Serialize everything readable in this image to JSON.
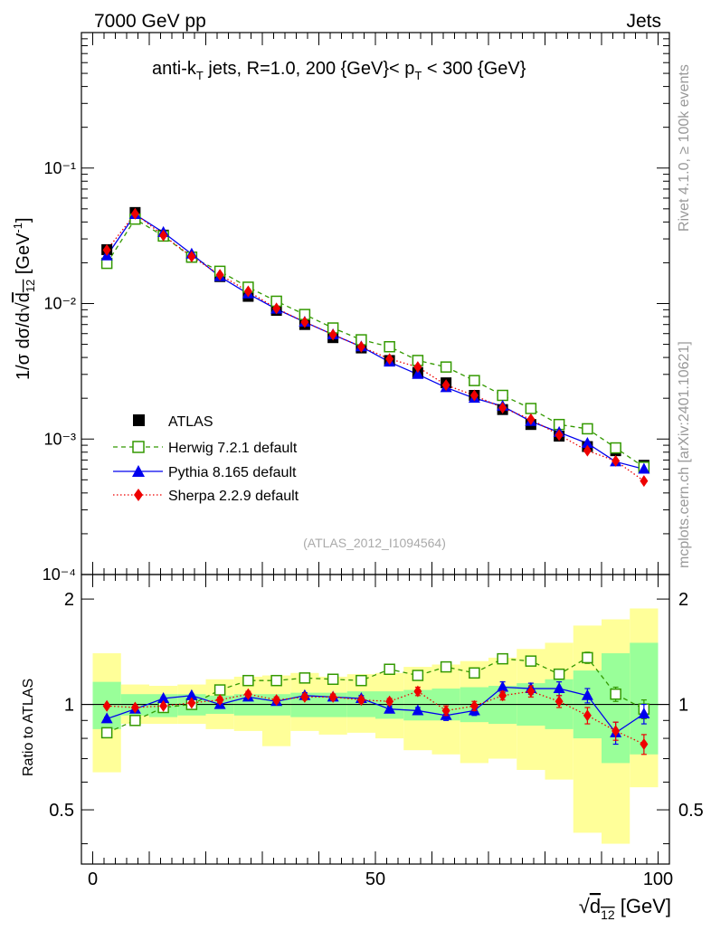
{
  "header": {
    "left": "7000 GeV pp",
    "right": "Jets"
  },
  "side_texts": {
    "rivet": "Rivet 4.1.0, ≥ 100k events",
    "mcplots": "mcplots.cern.ch [arXiv:2401.10621]"
  },
  "chart_data": [
    {
      "type": "scatter",
      "panel": "main",
      "title": "anti-kT jets, R=1.0, 200 {GeV}< pT < 300 {GeV}",
      "watermark": "(ATLAS_2012_I1094564)",
      "ylabel": "1/σ dσ/d√d12 [GeV⁻¹]",
      "xlabel": "√d12 [GeV]",
      "yscale": "log",
      "xlim": [
        -2,
        102
      ],
      "ylim": [
        0.0001,
        1
      ],
      "ytick_labels": [
        "10⁻⁴",
        "10⁻³",
        "10⁻²",
        "10⁻¹"
      ],
      "x": [
        2.5,
        7.5,
        12.5,
        17.5,
        22.5,
        27.5,
        32.5,
        37.5,
        42.5,
        47.5,
        52.5,
        57.5,
        62.5,
        67.5,
        72.5,
        77.5,
        82.5,
        87.5,
        92.5,
        97.5
      ],
      "legend": [
        "ATLAS",
        "Herwig 7.2.1 default",
        "Pythia 8.165 default",
        "Sherpa 2.2.9 default"
      ],
      "series": [
        {
          "name": "ATLAS",
          "color": "#000000",
          "marker": "square-filled",
          "values": [
            0.025,
            0.047,
            0.032,
            0.022,
            0.0158,
            0.0113,
            0.0089,
            0.007,
            0.0056,
            0.0047,
            0.0038,
            0.0031,
            0.0026,
            0.0021,
            0.00165,
            0.00128,
            0.00105,
            0.00088,
            0.00082,
            0.00064
          ]
        },
        {
          "name": "Herwig 7.2.1 default",
          "color": "#339900",
          "marker": "square-open",
          "line": "dashed",
          "values": [
            0.0198,
            0.042,
            0.0315,
            0.022,
            0.0173,
            0.0132,
            0.0104,
            0.0083,
            0.0066,
            0.0054,
            0.0048,
            0.0038,
            0.0034,
            0.0027,
            0.0021,
            0.00168,
            0.00128,
            0.00119,
            0.00086,
            0.00062
          ]
        },
        {
          "name": "Pythia 8.165 default",
          "color": "#0000ee",
          "marker": "triangle-filled",
          "line": "solid",
          "values": [
            0.0225,
            0.0455,
            0.0335,
            0.0232,
            0.0158,
            0.0118,
            0.0091,
            0.0073,
            0.0059,
            0.0048,
            0.0037,
            0.003,
            0.0024,
            0.002,
            0.00175,
            0.00135,
            0.00112,
            0.00093,
            0.00068,
            0.0006
          ]
        },
        {
          "name": "Sherpa 2.2.9 default",
          "color": "#ee0000",
          "marker": "diamond-filled",
          "line": "dotted",
          "values": [
            0.0248,
            0.046,
            0.0318,
            0.0222,
            0.0163,
            0.0123,
            0.0092,
            0.0073,
            0.0059,
            0.0048,
            0.0039,
            0.0034,
            0.0025,
            0.0021,
            0.0017,
            0.0014,
            0.00107,
            0.00082,
            0.00069,
            0.00049
          ]
        }
      ]
    },
    {
      "type": "scatter",
      "panel": "ratio",
      "ylabel": "Ratio to ATLAS",
      "xlabel": "√d12 [GeV]",
      "xlim": [
        -2,
        102
      ],
      "ylim": [
        0.35,
        2.35
      ],
      "yscale": "log",
      "ytick_labels": [
        "0.5",
        "1",
        "2"
      ],
      "xtick_labels": [
        "0",
        "50",
        "100"
      ],
      "x": [
        2.5,
        7.5,
        12.5,
        17.5,
        22.5,
        27.5,
        32.5,
        37.5,
        42.5,
        47.5,
        52.5,
        57.5,
        62.5,
        67.5,
        72.5,
        77.5,
        82.5,
        87.5,
        92.5,
        97.5
      ],
      "band_inner": {
        "color": "#99ff99",
        "lo": [
          0.85,
          0.93,
          0.92,
          0.93,
          0.94,
          0.93,
          0.93,
          0.92,
          0.92,
          0.92,
          0.91,
          0.9,
          0.9,
          0.89,
          0.88,
          0.87,
          0.85,
          0.8,
          0.68,
          0.72
        ],
        "hi": [
          1.16,
          1.07,
          1.07,
          1.07,
          1.06,
          1.07,
          1.07,
          1.08,
          1.08,
          1.09,
          1.09,
          1.1,
          1.11,
          1.12,
          1.13,
          1.15,
          1.18,
          1.25,
          1.4,
          1.5
        ]
      },
      "band_outer": {
        "color": "#ffff99",
        "lo": [
          0.64,
          0.88,
          0.88,
          0.88,
          0.85,
          0.84,
          0.76,
          0.84,
          0.82,
          0.83,
          0.8,
          0.74,
          0.72,
          0.68,
          0.7,
          0.65,
          0.61,
          0.43,
          0.4,
          0.58
        ],
        "hi": [
          1.4,
          1.14,
          1.13,
          1.14,
          1.18,
          1.2,
          1.21,
          1.23,
          1.2,
          1.22,
          1.23,
          1.28,
          1.3,
          1.33,
          1.36,
          1.44,
          1.5,
          1.68,
          1.75,
          1.88
        ]
      },
      "series": [
        {
          "name": "Herwig 7.2.1 default",
          "color": "#339900",
          "marker": "square-open",
          "line": "dashed",
          "values": [
            0.83,
            0.9,
            0.98,
            1.0,
            1.1,
            1.17,
            1.17,
            1.19,
            1.18,
            1.17,
            1.26,
            1.21,
            1.28,
            1.23,
            1.35,
            1.33,
            1.22,
            1.36,
            1.07,
            0.97
          ],
          "err": [
            0.02,
            0.02,
            0.02,
            0.02,
            0.02,
            0.02,
            0.02,
            0.02,
            0.02,
            0.02,
            0.02,
            0.02,
            0.03,
            0.03,
            0.03,
            0.04,
            0.04,
            0.05,
            0.05,
            0.06
          ]
        },
        {
          "name": "Pythia 8.165 default",
          "color": "#0000ee",
          "marker": "triangle-filled",
          "line": "solid",
          "values": [
            0.91,
            0.97,
            1.04,
            1.06,
            1.0,
            1.05,
            1.02,
            1.06,
            1.05,
            1.04,
            0.97,
            0.96,
            0.93,
            0.96,
            1.12,
            1.11,
            1.11,
            1.06,
            0.83,
            0.94
          ],
          "err": [
            0.01,
            0.01,
            0.01,
            0.01,
            0.01,
            0.02,
            0.02,
            0.02,
            0.02,
            0.02,
            0.02,
            0.02,
            0.03,
            0.03,
            0.04,
            0.04,
            0.05,
            0.05,
            0.06,
            0.06
          ]
        },
        {
          "name": "Sherpa 2.2.9 default",
          "color": "#ee0000",
          "marker": "diamond-filled",
          "line": "dotted",
          "values": [
            0.99,
            0.98,
            0.99,
            1.01,
            1.03,
            1.07,
            1.03,
            1.05,
            1.05,
            1.03,
            1.02,
            1.09,
            0.96,
            0.99,
            1.06,
            1.09,
            1.02,
            0.93,
            0.84,
            0.77
          ],
          "err": [
            0.01,
            0.01,
            0.01,
            0.01,
            0.02,
            0.02,
            0.02,
            0.02,
            0.02,
            0.02,
            0.02,
            0.03,
            0.03,
            0.03,
            0.03,
            0.04,
            0.04,
            0.05,
            0.05,
            0.05
          ]
        }
      ]
    }
  ]
}
